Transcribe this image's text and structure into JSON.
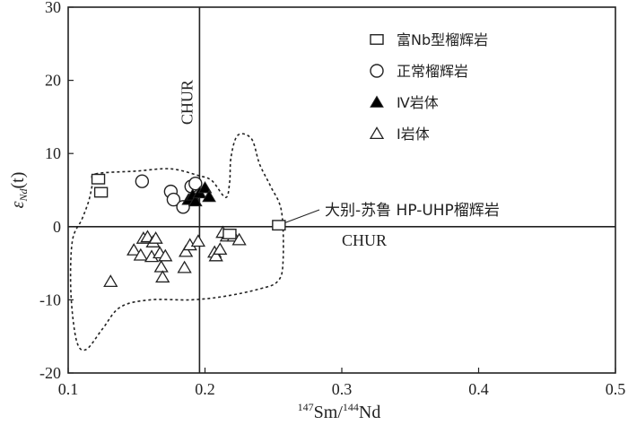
{
  "chart_data": {
    "type": "scatter",
    "title": "",
    "xlabel": {
      "pre_sup": "147",
      "pre_text": "Sm/",
      "mid_sup": "144",
      "post_text": "Nd"
    },
    "ylabel": {
      "epsilon": "ε",
      "sub": "Nd",
      "suffix": "(t)"
    },
    "xlim": [
      0.1,
      0.5
    ],
    "ylim": [
      -20,
      30
    ],
    "xticks": [
      0.1,
      0.2,
      0.3,
      0.4,
      0.5
    ],
    "xtick_labels": [
      "0.1",
      "0.2",
      "0.3",
      "0.4",
      "0.5"
    ],
    "yticks": [
      -20,
      -10,
      0,
      10,
      20,
      30
    ],
    "ytick_labels": [
      "-20",
      "-10",
      "0",
      "10",
      "20",
      "30"
    ],
    "grid": false,
    "legend_position": "top-right",
    "reference_lines": [
      {
        "orientation": "vertical",
        "x": 0.196,
        "label": "CHUR"
      },
      {
        "orientation": "horizontal",
        "y": 0,
        "label": "CHUR"
      }
    ],
    "series": [
      {
        "name": "富Nb型榴辉岩",
        "marker": "square",
        "points": [
          [
            0.122,
            6.5
          ],
          [
            0.124,
            4.7
          ],
          [
            0.218,
            -1.0
          ],
          [
            0.254,
            0.2
          ]
        ]
      },
      {
        "name": "正常榴辉岩",
        "marker": "circle",
        "points": [
          [
            0.154,
            6.2
          ],
          [
            0.175,
            4.8
          ],
          [
            0.177,
            3.7
          ],
          [
            0.184,
            2.7
          ],
          [
            0.19,
            5.5
          ],
          [
            0.193,
            5.9
          ]
        ]
      },
      {
        "name": "Ⅳ岩体",
        "marker": "triangle-filled",
        "points": [
          [
            0.188,
            3.7
          ],
          [
            0.191,
            4.3
          ],
          [
            0.193,
            3.5
          ],
          [
            0.196,
            4.6
          ],
          [
            0.2,
            5.3
          ],
          [
            0.203,
            4.1
          ]
        ]
      },
      {
        "name": "Ⅰ岩体",
        "marker": "triangle-open",
        "points": [
          [
            0.131,
            -7.5
          ],
          [
            0.148,
            -3.2
          ],
          [
            0.153,
            -3.9
          ],
          [
            0.155,
            -1.6
          ],
          [
            0.158,
            -1.4
          ],
          [
            0.161,
            -4.1
          ],
          [
            0.162,
            -2.1
          ],
          [
            0.164,
            -1.6
          ],
          [
            0.167,
            -3.6
          ],
          [
            0.168,
            -5.5
          ],
          [
            0.169,
            -6.9
          ],
          [
            0.171,
            -4.0
          ],
          [
            0.185,
            -5.6
          ],
          [
            0.186,
            -3.4
          ],
          [
            0.189,
            -2.5
          ],
          [
            0.195,
            -2.0
          ],
          [
            0.207,
            -3.5
          ],
          [
            0.208,
            -4.0
          ],
          [
            0.211,
            -3.1
          ],
          [
            0.213,
            -0.8
          ],
          [
            0.216,
            -1.3
          ],
          [
            0.221,
            -1.3
          ],
          [
            0.225,
            -1.8
          ]
        ]
      }
    ],
    "field": {
      "label": "大别-苏鲁 HP-UHP榴辉岩",
      "boundary": [
        [
          0.12,
          7.2
        ],
        [
          0.15,
          7.6
        ],
        [
          0.175,
          7.9
        ],
        [
          0.195,
          7.0
        ],
        [
          0.205,
          6.3
        ],
        [
          0.215,
          4.0
        ],
        [
          0.218,
          6.0
        ],
        [
          0.219,
          9.5
        ],
        [
          0.224,
          12.5
        ],
        [
          0.234,
          12.0
        ],
        [
          0.24,
          8.5
        ],
        [
          0.248,
          5.5
        ],
        [
          0.256,
          2.0
        ],
        [
          0.257,
          -5.0
        ],
        [
          0.253,
          -7.5
        ],
        [
          0.24,
          -8.5
        ],
        [
          0.215,
          -9.5
        ],
        [
          0.19,
          -10.0
        ],
        [
          0.16,
          -10.0
        ],
        [
          0.138,
          -11.0
        ],
        [
          0.125,
          -14.0
        ],
        [
          0.113,
          -16.8
        ],
        [
          0.106,
          -15.5
        ],
        [
          0.102,
          -9.0
        ],
        [
          0.103,
          -2.0
        ],
        [
          0.11,
          1.0
        ],
        [
          0.115,
          3.5
        ],
        [
          0.118,
          6.0
        ]
      ],
      "label_anchor": [
        0.256,
        0.3
      ]
    }
  }
}
